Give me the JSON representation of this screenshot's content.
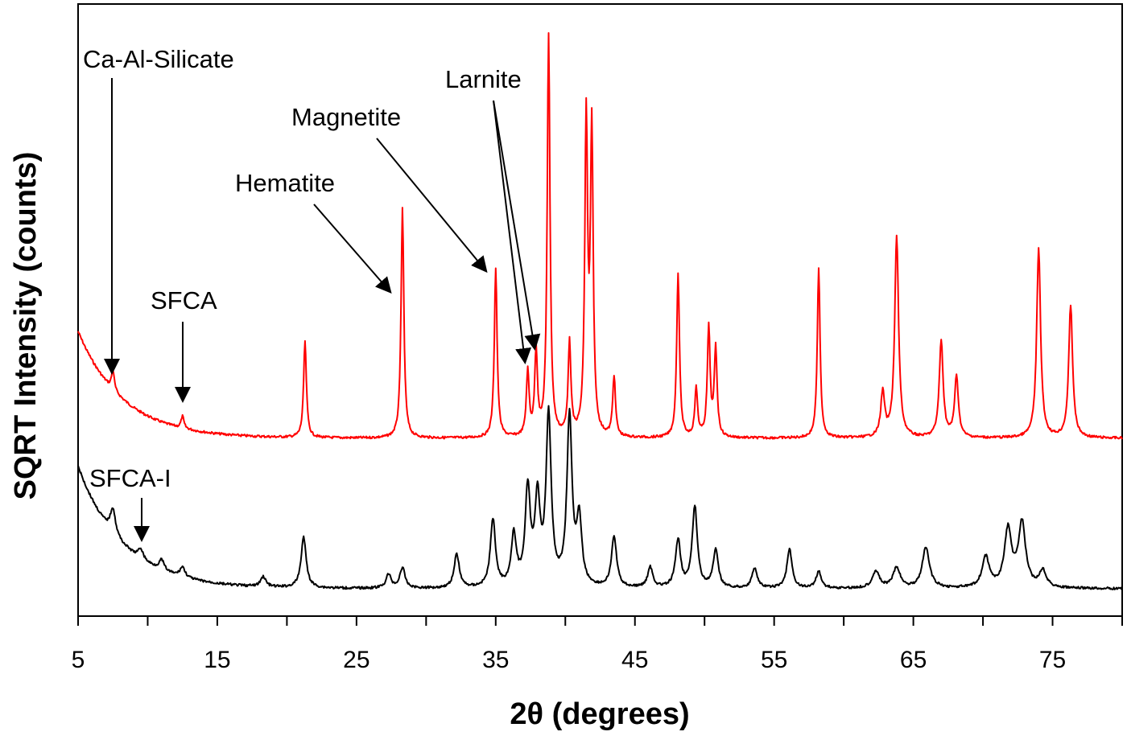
{
  "chart_data": {
    "type": "line",
    "title": "",
    "xlabel": "2θ (degrees)",
    "ylabel": "SQRT Intensity  (counts)",
    "xlim": [
      5,
      80
    ],
    "x_ticks": [
      5,
      15,
      25,
      35,
      45,
      55,
      65,
      75
    ],
    "x_tick_labels": [
      "5",
      "15",
      "25",
      "35",
      "45",
      "55",
      "65",
      "75"
    ],
    "y_ticks": [],
    "grid": false,
    "legend": null,
    "series": [
      {
        "name": "upper pattern (red)",
        "color": "#ff0000",
        "baseline_description": "decaying background from 5° flattening by ~20°",
        "peaks_2theta": [
          7.5,
          12.5,
          21.3,
          28.3,
          35.0,
          37.3,
          37.9,
          38.8,
          40.3,
          41.5,
          41.9,
          43.5,
          48.1,
          49.4,
          50.3,
          50.8,
          58.2,
          62.8,
          63.8,
          67.0,
          68.1,
          74.0,
          76.3
        ],
        "relative_heights": [
          0.05,
          0.03,
          0.24,
          0.57,
          0.42,
          0.16,
          0.21,
          1.0,
          0.23,
          0.78,
          0.75,
          0.15,
          0.41,
          0.12,
          0.27,
          0.22,
          0.42,
          0.11,
          0.5,
          0.24,
          0.15,
          0.47,
          0.33
        ]
      },
      {
        "name": "lower pattern (black)",
        "color": "#000000",
        "baseline_description": "decaying background from 5° flattening by ~20°",
        "peaks_2theta": [
          7.5,
          9.5,
          11.0,
          12.5,
          18.3,
          21.2,
          27.3,
          28.3,
          32.2,
          34.8,
          36.3,
          37.3,
          38.0,
          38.8,
          40.3,
          41.0,
          43.5,
          46.1,
          48.1,
          49.3,
          50.8,
          53.6,
          56.1,
          58.2,
          62.3,
          63.8,
          65.9,
          70.2,
          71.8,
          72.8,
          74.3
        ],
        "relative_heights": [
          0.15,
          0.06,
          0.06,
          0.06,
          0.06,
          0.3,
          0.08,
          0.12,
          0.2,
          0.4,
          0.3,
          0.56,
          0.5,
          1.0,
          1.0,
          0.38,
          0.3,
          0.12,
          0.28,
          0.48,
          0.22,
          0.12,
          0.23,
          0.1,
          0.1,
          0.12,
          0.24,
          0.18,
          0.34,
          0.38,
          0.1
        ]
      }
    ],
    "annotations": [
      {
        "text": "Ca-Al-Silicate",
        "arrow_to_2theta": 7.5,
        "series": "red"
      },
      {
        "text": "SFCA",
        "arrow_to_2theta": 12.5,
        "series": "red"
      },
      {
        "text": "Hematite",
        "arrow_to_2theta": 28.3,
        "series": "red"
      },
      {
        "text": "Magnetite",
        "arrow_to_2theta": 35.0,
        "series": "red"
      },
      {
        "text": "Larnite",
        "arrow_to_2theta": [
          37.3,
          37.9
        ],
        "series": "red"
      },
      {
        "text": "SFCA-I",
        "arrow_to_2theta": 9.5,
        "series": "black"
      }
    ]
  },
  "labels": {
    "xlabel": "2θ (degrees)",
    "ylabel": "SQRT Intensity  (counts)",
    "ticks": [
      "5",
      "15",
      "25",
      "35",
      "45",
      "55",
      "65",
      "75"
    ],
    "ann_ca_al_silicate": "Ca-Al-Silicate",
    "ann_sfca": "SFCA",
    "ann_hematite": "Hematite",
    "ann_magnetite": "Magnetite",
    "ann_larnite": "Larnite",
    "ann_sfca_i": "SFCA-I"
  }
}
